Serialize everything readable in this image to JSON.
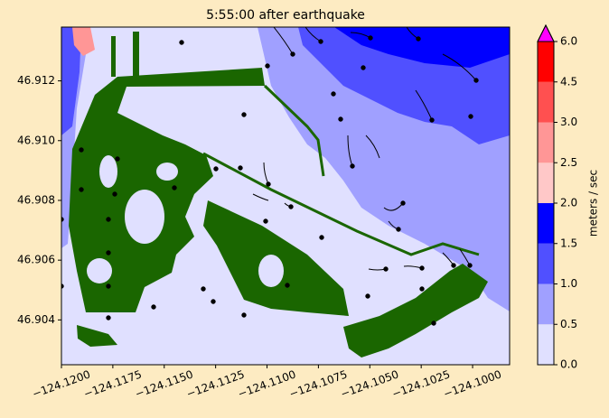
{
  "chart_data": {
    "type": "contour",
    "title": "5:55:00 after earthquake",
    "xlim": [
      -124.12,
      -124.0982
    ],
    "ylim": [
      46.9025,
      46.9138
    ],
    "xticks": [
      {
        "value": -124.12,
        "label": "−124.1200"
      },
      {
        "value": -124.1175,
        "label": "−124.1175"
      },
      {
        "value": -124.115,
        "label": "−124.1150"
      },
      {
        "value": -124.1125,
        "label": "−124.1125"
      },
      {
        "value": -124.11,
        "label": "−124.1100"
      },
      {
        "value": -124.1075,
        "label": "−124.1075"
      },
      {
        "value": -124.105,
        "label": "−124.1050"
      },
      {
        "value": -124.1025,
        "label": "−124.1025"
      },
      {
        "value": -124.1,
        "label": "−124.1000"
      }
    ],
    "yticks": [
      46.904,
      46.906,
      46.908,
      {
        "value": 46.91,
        "label": "46.910"
      },
      46.912
    ],
    "colorbar": {
      "label": "meters / sec",
      "ticks": [
        {
          "value": 0,
          "label": "0.0"
        },
        0.5,
        {
          "value": 1,
          "label": "1.0"
        },
        1.5,
        {
          "value": 2,
          "label": "2.0"
        },
        2.5,
        {
          "value": 3,
          "label": "3.0"
        },
        4.5,
        {
          "value": 6,
          "label": "6.0"
        }
      ],
      "colors": [
        "#e0e0ff",
        "#a0a0ff",
        "#5050ff",
        "#0000ff",
        "#ffc8c8",
        "#ff9696",
        "#ff5050",
        "#ff0000"
      ],
      "extend_color": "#ff00ff"
    }
  }
}
